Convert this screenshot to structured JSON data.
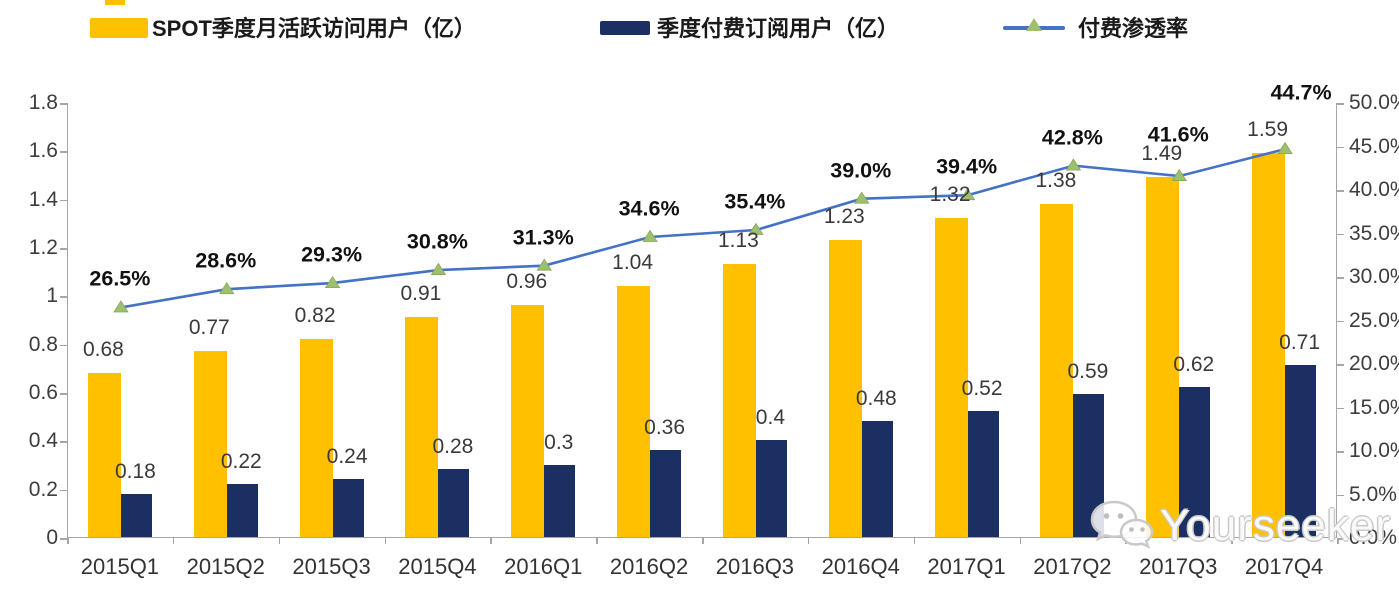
{
  "legend": {
    "items": [
      {
        "label": "SPOT季度月活跃访问用户（亿）",
        "swatch": "bar",
        "color": "#FFC000"
      },
      {
        "label": "季度付费订阅用户（亿）",
        "swatch": "bar",
        "color": "#1B2F63"
      },
      {
        "label": "付费渗透率",
        "swatch": "line-triangle",
        "color": "#4472C4",
        "marker_color": "#9EC06E"
      }
    ]
  },
  "chart_data": {
    "type": "combo",
    "categories": [
      "2015Q1",
      "2015Q2",
      "2015Q3",
      "2015Q4",
      "2016Q1",
      "2016Q2",
      "2016Q3",
      "2016Q4",
      "2017Q1",
      "2017Q2",
      "2017Q3",
      "2017Q4"
    ],
    "series": [
      {
        "name": "SPOT季度月活跃访问用户（亿）",
        "chart": "bar",
        "axis": "left",
        "color": "#FFC000",
        "values": [
          0.68,
          0.77,
          0.82,
          0.91,
          0.96,
          1.04,
          1.13,
          1.23,
          1.32,
          1.38,
          1.49,
          1.59
        ],
        "labels": [
          "0.68",
          "0.77",
          "0.82",
          "0.91",
          "0.96",
          "1.04",
          "1.13",
          "1.23",
          "1.32",
          "1.38",
          "1.49",
          "1.59"
        ]
      },
      {
        "name": "季度付费订阅用户（亿）",
        "chart": "bar",
        "axis": "left",
        "color": "#1B2F63",
        "values": [
          0.18,
          0.22,
          0.24,
          0.28,
          0.3,
          0.36,
          0.4,
          0.48,
          0.52,
          0.59,
          0.62,
          0.71
        ],
        "labels": [
          "0.18",
          "0.22",
          "0.24",
          "0.28",
          "0.3",
          "0.36",
          "0.4",
          "0.48",
          "0.52",
          "0.59",
          "0.62",
          "0.71"
        ]
      },
      {
        "name": "付费渗透率",
        "chart": "line",
        "axis": "right",
        "color": "#4472C4",
        "marker": "triangle",
        "marker_color": "#9EC06E",
        "values": [
          26.5,
          28.6,
          29.3,
          30.8,
          31.3,
          34.6,
          35.4,
          39.0,
          39.4,
          42.8,
          41.6,
          44.7
        ],
        "labels": [
          "26.5%",
          "28.6%",
          "29.3%",
          "30.8%",
          "31.3%",
          "34.6%",
          "35.4%",
          "39.0%",
          "39.4%",
          "42.8%",
          "41.6%",
          "44.7%"
        ]
      }
    ],
    "left_axis": {
      "min": 0,
      "max": 1.8,
      "step": 0.2,
      "tick_labels": [
        "1.8",
        "1.6",
        "1.4",
        "1.2",
        "1",
        "0.8",
        "0.6",
        "0.4",
        "0.2",
        "0"
      ]
    },
    "right_axis": {
      "min": 0,
      "max": 50,
      "step": 5,
      "tick_labels": [
        "50.0%",
        "45.0%",
        "40.0%",
        "35.0%",
        "30.0%",
        "25.0%",
        "20.0%",
        "15.0%",
        "10.0%",
        "5.0%",
        "0.0%"
      ]
    },
    "grid": false,
    "legend_position": "top"
  },
  "watermark": {
    "text": "Yourseeker",
    "icon": "wechat-icon"
  }
}
